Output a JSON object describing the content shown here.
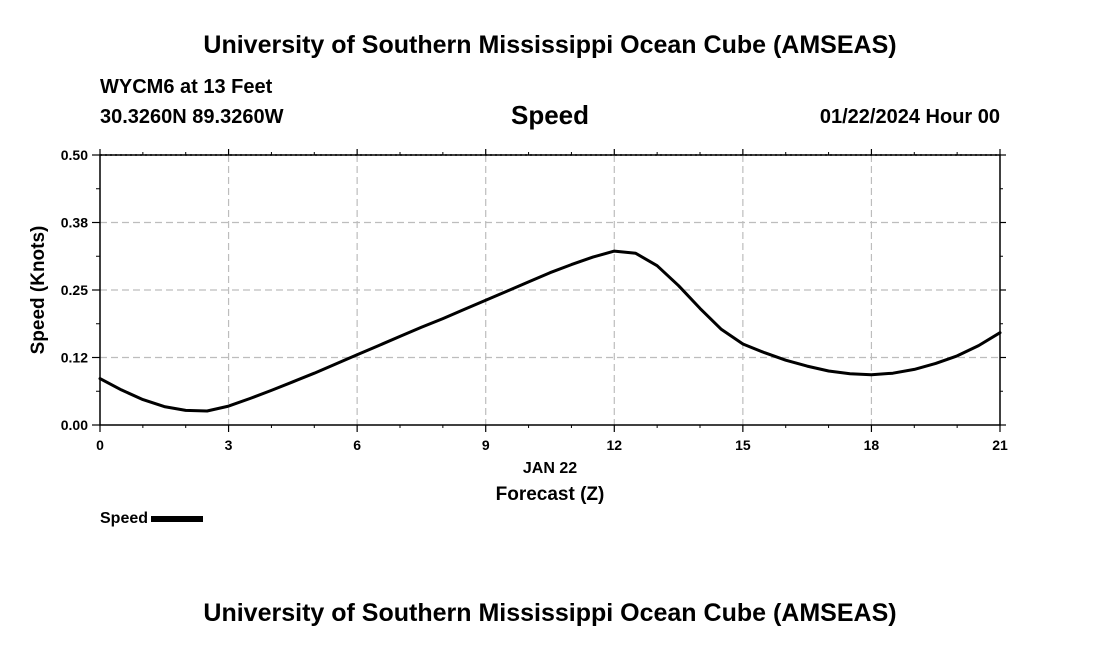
{
  "header": {
    "title": "University of Southern Mississippi Ocean Cube (AMSEAS)",
    "station": "WYCM6 at 13 Feet",
    "coords": "30.3260N  89.3260W",
    "datetime": "01/22/2024 Hour 00"
  },
  "footer": {
    "title": "University of Southern Mississippi Ocean Cube (AMSEAS)"
  },
  "chart_data": {
    "type": "line",
    "title": "Speed",
    "xlabel": "Forecast (Z)",
    "xsublabel": "JAN 22",
    "ylabel": "Speed (Knots)",
    "xlim": [
      0,
      21
    ],
    "ylim": [
      0,
      0.5
    ],
    "xticks": [
      0,
      3,
      6,
      9,
      12,
      15,
      18,
      21
    ],
    "xtick_labels": [
      "0",
      "3",
      "6",
      "9",
      "12",
      "15",
      "18",
      "21"
    ],
    "yticks": [
      0,
      0.125,
      0.25,
      0.375,
      0.5
    ],
    "ytick_labels": [
      "0.00",
      "0.12",
      "0.25",
      "0.38",
      "0.50"
    ],
    "grid": true,
    "legend": "bottom-left",
    "series": [
      {
        "name": "Speed",
        "color": "#000000",
        "x": [
          0,
          0.5,
          1,
          1.5,
          2,
          2.5,
          3,
          3.5,
          4,
          4.5,
          5,
          5.5,
          6,
          6.5,
          7,
          7.5,
          8,
          8.5,
          9,
          9.5,
          10,
          10.5,
          11,
          11.5,
          12,
          12.5,
          13,
          13.5,
          14,
          14.5,
          15,
          15.5,
          16,
          16.5,
          17,
          17.5,
          18,
          18.5,
          19,
          19.5,
          20,
          20.5,
          21
        ],
        "values": [
          0.086,
          0.065,
          0.047,
          0.034,
          0.027,
          0.026,
          0.035,
          0.049,
          0.064,
          0.08,
          0.096,
          0.113,
          0.13,
          0.147,
          0.164,
          0.181,
          0.197,
          0.214,
          0.231,
          0.248,
          0.265,
          0.282,
          0.297,
          0.311,
          0.322,
          0.318,
          0.295,
          0.258,
          0.216,
          0.177,
          0.15,
          0.134,
          0.12,
          0.109,
          0.1,
          0.095,
          0.093,
          0.096,
          0.103,
          0.114,
          0.128,
          0.147,
          0.171
        ]
      }
    ]
  },
  "legend": {
    "label": "Speed"
  }
}
